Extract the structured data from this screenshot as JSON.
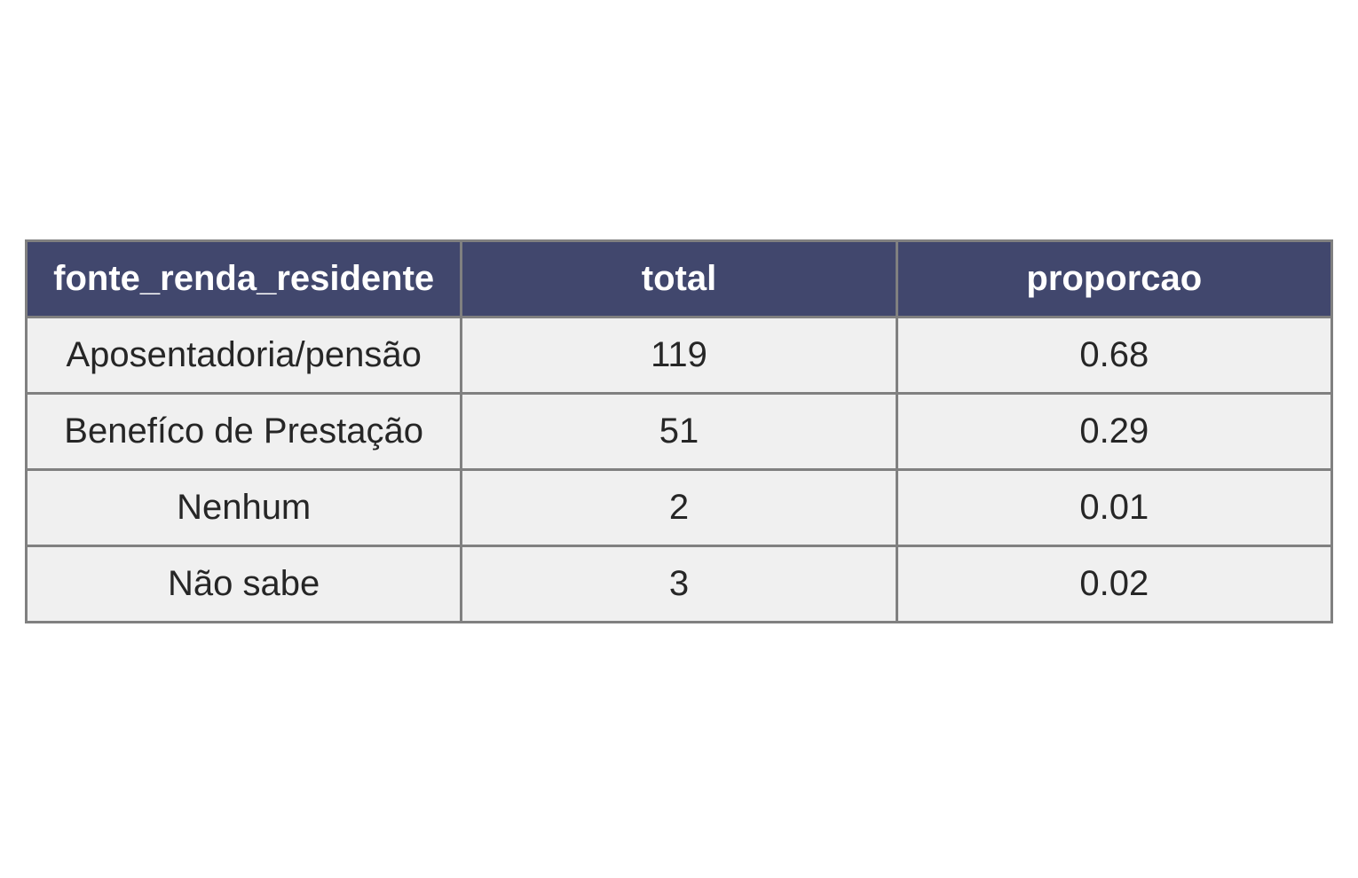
{
  "chart_data": {
    "type": "table",
    "columns": [
      "fonte_renda_residente",
      "total",
      "proporcao"
    ],
    "rows": [
      [
        "Aposentadoria/pensão",
        "119",
        "0.68"
      ],
      [
        "Benefíco de Prestação",
        "51",
        "0.29"
      ],
      [
        "Nenhum",
        "2",
        "0.01"
      ],
      [
        "Não sabe",
        "3",
        "0.02"
      ]
    ],
    "header_color": "#41476d",
    "header_text_color": "#ffffff",
    "cell_color": "#f0f0f0",
    "border_color": "#808080"
  }
}
